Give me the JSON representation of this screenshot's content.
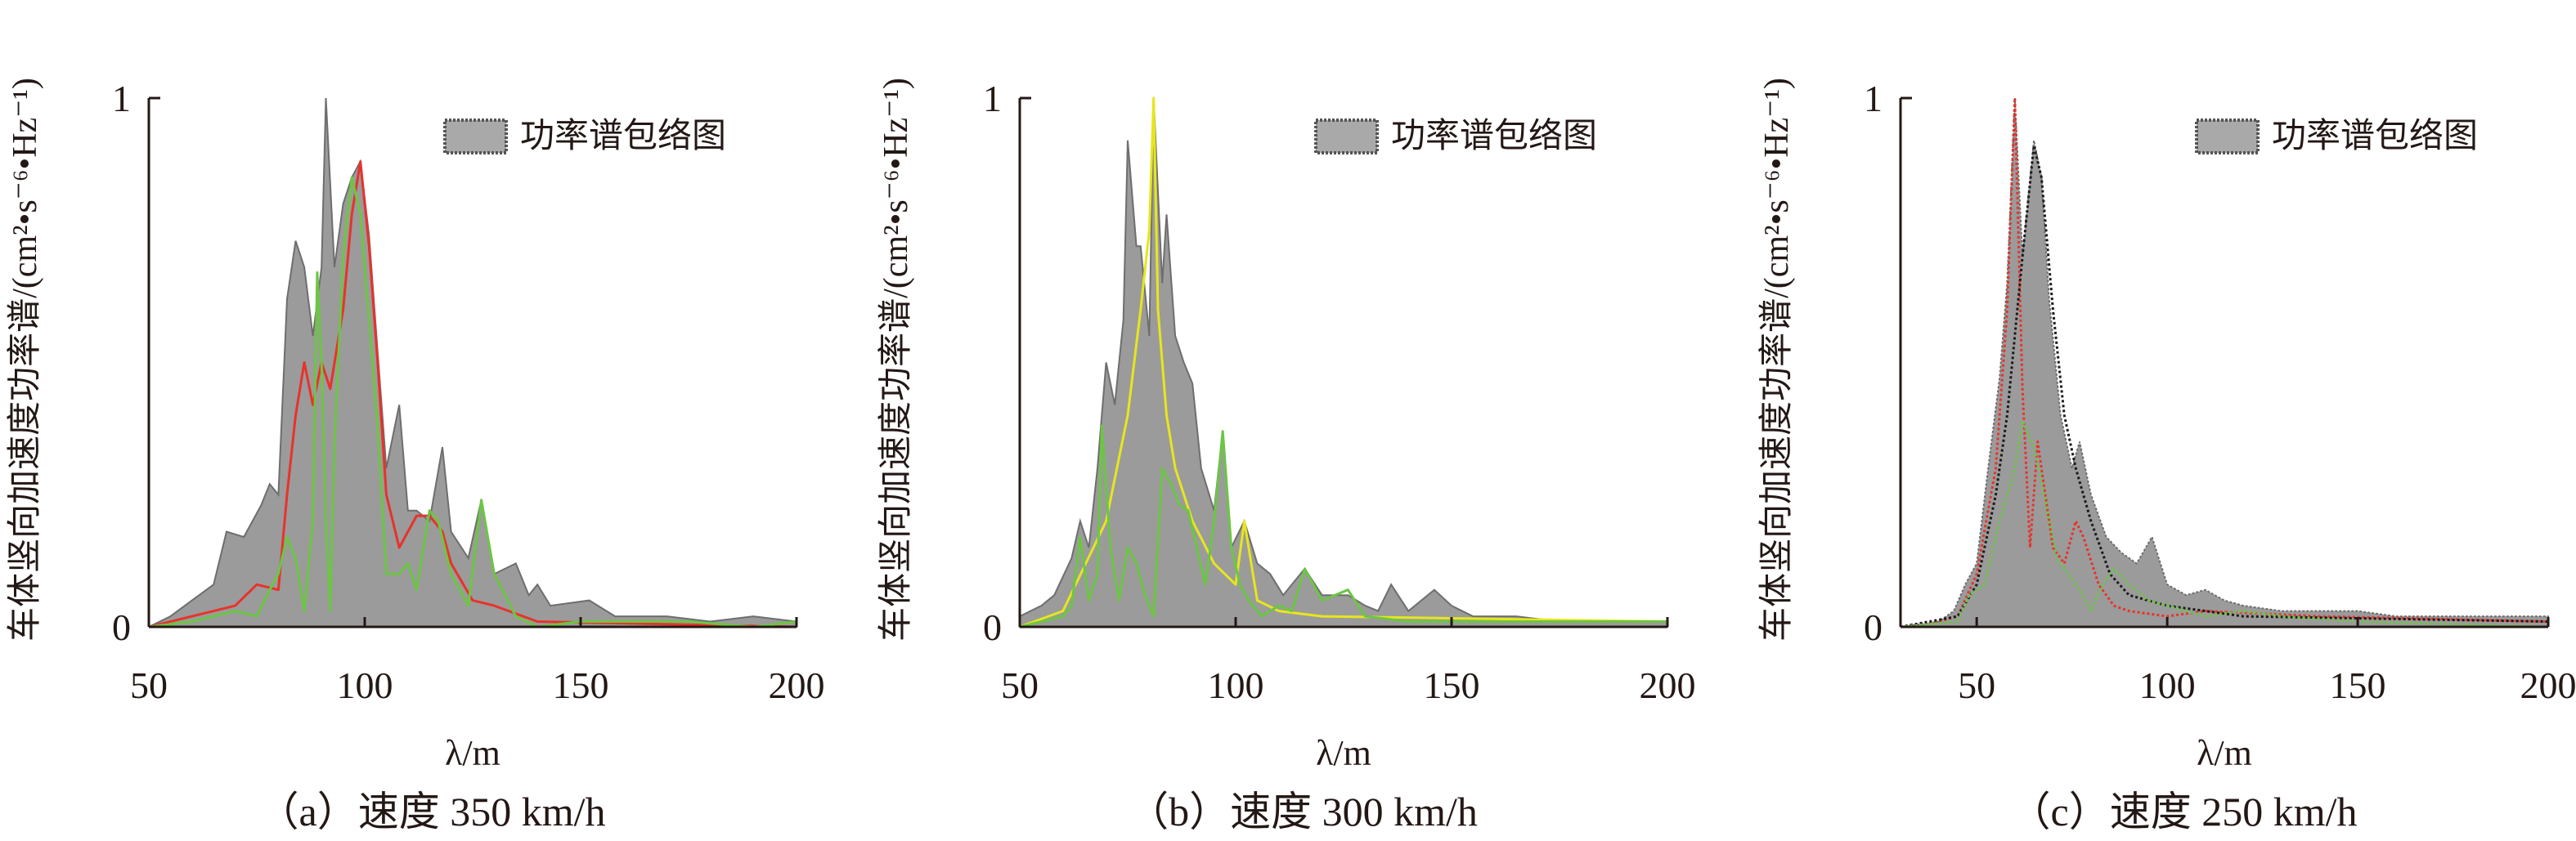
{
  "chart_data": [
    {
      "type": "area",
      "panel": "a",
      "caption": "（a）速度 350 km/h",
      "xlabel": "λ/m",
      "ylabel": "车体竖向加速度功率谱/(cm²•s⁻⁶•Hz⁻¹)",
      "xlim": [
        50,
        200
      ],
      "ylim": [
        0,
        1
      ],
      "xticks": [
        "50",
        "100",
        "150",
        "200"
      ],
      "xtick_values": [
        50,
        100,
        150,
        200
      ],
      "yticks": [
        "0",
        "1"
      ],
      "legend": {
        "label": "功率谱包络图",
        "position": "top-right"
      },
      "grid": false,
      "series": [
        {
          "name": "功率谱包络图",
          "color": "#8a8a8a",
          "style": "fill",
          "x": [
            50,
            55,
            60,
            65,
            68,
            72,
            76,
            78,
            80,
            82,
            84,
            86,
            88,
            90,
            91,
            93,
            95,
            97,
            99,
            101,
            103,
            105,
            108,
            110,
            112,
            115,
            118,
            120,
            124,
            127,
            130,
            135,
            138,
            140,
            143,
            152,
            158,
            170,
            180,
            190,
            200
          ],
          "y": [
            0,
            0.02,
            0.05,
            0.08,
            0.18,
            0.17,
            0.23,
            0.27,
            0.25,
            0.62,
            0.73,
            0.68,
            0.55,
            0.68,
            1.0,
            0.68,
            0.8,
            0.85,
            0.88,
            0.74,
            0.52,
            0.3,
            0.42,
            0.22,
            0.22,
            0.2,
            0.34,
            0.18,
            0.13,
            0.24,
            0.1,
            0.12,
            0.06,
            0.08,
            0.04,
            0.05,
            0.02,
            0.02,
            0.01,
            0.02,
            0.01
          ]
        },
        {
          "name": "red",
          "color": "#e8322b",
          "style": "line",
          "x": [
            50,
            60,
            70,
            75,
            80,
            82,
            84,
            86,
            88,
            90,
            92,
            95,
            97,
            99,
            101,
            103,
            105,
            108,
            112,
            115,
            118,
            120,
            125,
            130,
            140,
            200
          ],
          "y": [
            0,
            0.02,
            0.04,
            0.08,
            0.07,
            0.25,
            0.4,
            0.5,
            0.42,
            0.5,
            0.45,
            0.6,
            0.78,
            0.88,
            0.72,
            0.5,
            0.25,
            0.15,
            0.21,
            0.21,
            0.18,
            0.12,
            0.05,
            0.04,
            0.01,
            0
          ]
        },
        {
          "name": "green",
          "color": "#6cc644",
          "style": "line",
          "x": [
            50,
            60,
            70,
            75,
            78,
            80,
            82,
            84,
            86,
            88,
            89,
            90,
            91,
            92,
            93,
            95,
            97,
            99,
            101,
            103,
            105,
            108,
            110,
            112,
            115,
            117,
            120,
            124,
            127,
            130,
            135,
            140,
            150,
            175,
            190,
            200
          ],
          "y": [
            0,
            0.01,
            0.03,
            0.02,
            0.07,
            0.1,
            0.17,
            0.13,
            0.03,
            0.2,
            0.67,
            0.5,
            0.2,
            0.03,
            0.35,
            0.7,
            0.85,
            0.78,
            0.58,
            0.38,
            0.1,
            0.1,
            0.12,
            0.07,
            0.22,
            0.2,
            0.1,
            0.04,
            0.24,
            0.1,
            0.02,
            0,
            0.01,
            0.01,
            0,
            0.01
          ]
        }
      ]
    },
    {
      "type": "area",
      "panel": "b",
      "caption": "（b）速度 300 km/h",
      "xlabel": "λ/m",
      "ylabel": "车体竖向加速度功率谱/(cm²•s⁻⁶•Hz⁻¹)",
      "xlim": [
        50,
        200
      ],
      "ylim": [
        0,
        1
      ],
      "xticks": [
        "50",
        "100",
        "150",
        "200"
      ],
      "xtick_values": [
        50,
        100,
        150,
        200
      ],
      "yticks": [
        "0",
        "1"
      ],
      "legend": {
        "label": "功率谱包络图",
        "position": "top-right"
      },
      "grid": false,
      "series": [
        {
          "name": "功率谱包络图",
          "color": "#8a8a8a",
          "style": "fill",
          "x": [
            50,
            55,
            58,
            62,
            64,
            66,
            68,
            70,
            72,
            74,
            75,
            77,
            78,
            80,
            81,
            83,
            84,
            86,
            88,
            90,
            92,
            95,
            97,
            99,
            102,
            105,
            108,
            111,
            116,
            120,
            126,
            130,
            133,
            136,
            140,
            146,
            150,
            155,
            165,
            175,
            200
          ],
          "y": [
            0.02,
            0.04,
            0.06,
            0.13,
            0.2,
            0.15,
            0.3,
            0.5,
            0.42,
            0.58,
            0.92,
            0.72,
            0.72,
            0.55,
            1.0,
            0.65,
            0.78,
            0.55,
            0.5,
            0.46,
            0.3,
            0.22,
            0.37,
            0.15,
            0.2,
            0.12,
            0.1,
            0.06,
            0.11,
            0.06,
            0.06,
            0.04,
            0.03,
            0.08,
            0.03,
            0.07,
            0.04,
            0.02,
            0.02,
            0.01,
            0.01
          ]
        },
        {
          "name": "yellow",
          "color": "#e6e61e",
          "style": "line",
          "x": [
            50,
            60,
            70,
            75,
            78,
            80,
            81,
            82,
            84,
            86,
            90,
            95,
            100,
            102,
            105,
            110,
            120,
            200
          ],
          "y": [
            0,
            0.03,
            0.2,
            0.4,
            0.6,
            0.75,
            1.0,
            0.6,
            0.4,
            0.3,
            0.2,
            0.12,
            0.08,
            0.2,
            0.05,
            0.03,
            0.02,
            0.01
          ]
        },
        {
          "name": "green",
          "color": "#6cc644",
          "style": "line",
          "x": [
            50,
            55,
            60,
            62,
            64,
            66,
            68,
            69,
            71,
            73,
            75,
            77,
            79,
            81,
            83,
            85,
            87,
            89,
            91,
            93,
            95,
            97,
            99,
            101,
            103,
            106,
            110,
            113,
            116,
            120,
            126,
            130,
            140,
            200
          ],
          "y": [
            0,
            0.01,
            0.02,
            0.04,
            0.17,
            0.05,
            0.1,
            0.38,
            0.15,
            0.05,
            0.15,
            0.12,
            0.06,
            0.02,
            0.3,
            0.27,
            0.23,
            0.22,
            0.15,
            0.08,
            0.2,
            0.37,
            0.15,
            0.08,
            0.05,
            0.02,
            0.04,
            0.03,
            0.11,
            0.05,
            0.07,
            0.02,
            0.01,
            0.01
          ]
        }
      ]
    },
    {
      "type": "area",
      "panel": "c",
      "caption": "（c）速度 250 km/h",
      "xlabel": "λ/m",
      "ylabel": "车体竖向加速度功率谱/(cm²•s⁻⁶•Hz⁻¹)",
      "xlim": [
        30,
        200
      ],
      "ylim": [
        0,
        1
      ],
      "xticks": [
        "50",
        "100",
        "150",
        "200"
      ],
      "xtick_values": [
        50,
        100,
        150,
        200
      ],
      "yticks": [
        "0",
        "1"
      ],
      "legend": {
        "label": "功率谱包络图",
        "position": "top-right"
      },
      "grid": false,
      "series": [
        {
          "name": "功率谱包络图",
          "color": "#8a8a8a",
          "style": "fill",
          "x": [
            30,
            40,
            44,
            47,
            50,
            53,
            56,
            58,
            60,
            62,
            65,
            67,
            69,
            72,
            75,
            77,
            80,
            84,
            88,
            92,
            96,
            100,
            105,
            110,
            115,
            120,
            130,
            140,
            150,
            160,
            200
          ],
          "y": [
            0,
            0.01,
            0.03,
            0.08,
            0.12,
            0.3,
            0.47,
            0.65,
            1.0,
            0.7,
            0.92,
            0.85,
            0.62,
            0.4,
            0.3,
            0.35,
            0.25,
            0.17,
            0.14,
            0.12,
            0.17,
            0.08,
            0.06,
            0.07,
            0.05,
            0.04,
            0.03,
            0.03,
            0.03,
            0.02,
            0.02
          ]
        },
        {
          "name": "red",
          "color": "#e8322b",
          "style": "dotted",
          "x": [
            30,
            40,
            45,
            50,
            55,
            58,
            60,
            62,
            64,
            66,
            70,
            73,
            76,
            78,
            82,
            86,
            90,
            100,
            110,
            140,
            200
          ],
          "y": [
            0,
            0.01,
            0.02,
            0.1,
            0.3,
            0.6,
            1.0,
            0.45,
            0.15,
            0.35,
            0.15,
            0.12,
            0.2,
            0.17,
            0.08,
            0.04,
            0.03,
            0.02,
            0.03,
            0.02,
            0.01
          ]
        },
        {
          "name": "black",
          "color": "#1a1a1a",
          "style": "dotted",
          "x": [
            30,
            45,
            50,
            55,
            58,
            62,
            65,
            67,
            70,
            73,
            76,
            80,
            85,
            90,
            100,
            120,
            200
          ],
          "y": [
            0,
            0.02,
            0.08,
            0.25,
            0.4,
            0.7,
            0.91,
            0.85,
            0.6,
            0.4,
            0.3,
            0.2,
            0.1,
            0.06,
            0.04,
            0.02,
            0.01
          ]
        },
        {
          "name": "green",
          "color": "#6cc644",
          "style": "dotted",
          "x": [
            30,
            45,
            48,
            52,
            56,
            60,
            62,
            65,
            68,
            71,
            74,
            77,
            80,
            83,
            86,
            90,
            95,
            100,
            105,
            110,
            120,
            130,
            150,
            200
          ],
          "y": [
            0,
            0.01,
            0.06,
            0.08,
            0.2,
            0.3,
            0.39,
            0.34,
            0.24,
            0.13,
            0.1,
            0.07,
            0.03,
            0.08,
            0.11,
            0.08,
            0.05,
            0.04,
            0.03,
            0.02,
            0.03,
            0.02,
            0.01,
            0
          ]
        }
      ]
    }
  ]
}
